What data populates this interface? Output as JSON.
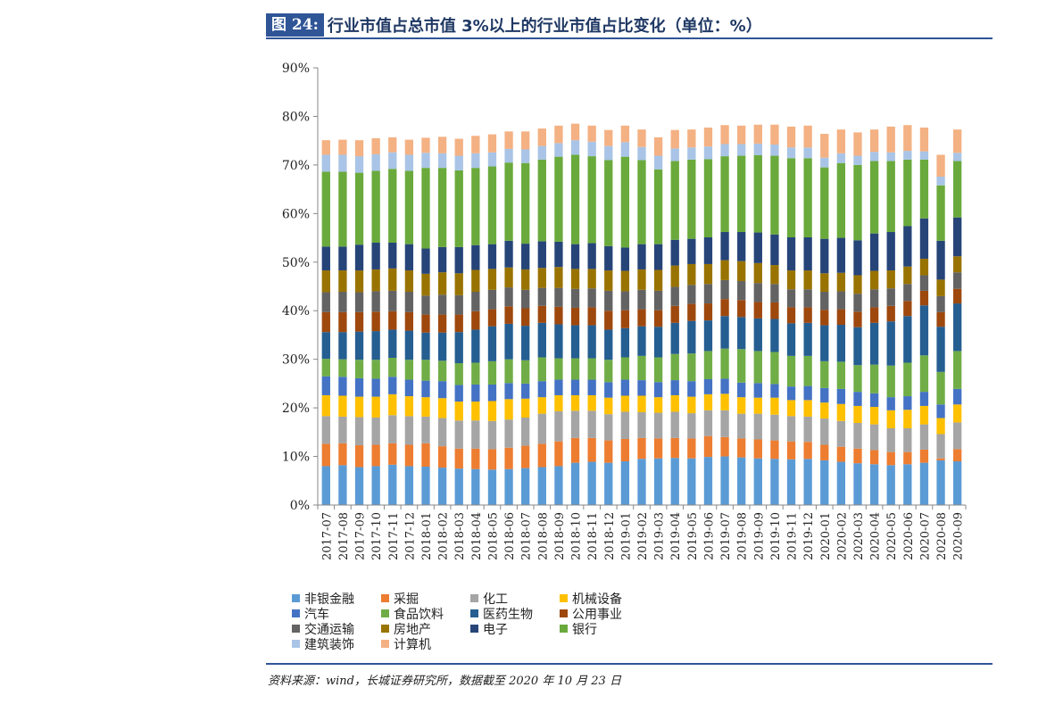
{
  "header": {
    "fig_label": "图 24:",
    "title": "行业市值占总市值 3%以上的行业市值占比变化（单位：%）"
  },
  "source": "资料来源：wind，长城证券研究所，数据截至 2020 年 10 月 23 日",
  "chart_data": {
    "type": "bar",
    "stacked": true,
    "title": "行业市值占总市值 3%以上的行业市值占比变化（单位：%）",
    "xlabel": "",
    "ylabel": "",
    "ylim": [
      0,
      90
    ],
    "y_ticks": [
      "0%",
      "10%",
      "20%",
      "30%",
      "40%",
      "50%",
      "60%",
      "70%",
      "80%",
      "90%"
    ],
    "legend_position": "bottom",
    "categories": [
      "2017-07",
      "2017-08",
      "2017-09",
      "2017-10",
      "2017-11",
      "2017-12",
      "2018-01",
      "2018-02",
      "2018-03",
      "2018-04",
      "2018-05",
      "2018-06",
      "2018-07",
      "2018-08",
      "2018-09",
      "2018-10",
      "2018-11",
      "2018-12",
      "2019-01",
      "2019-02",
      "2019-03",
      "2019-04",
      "2019-05",
      "2019-06",
      "2019-07",
      "2019-08",
      "2019-09",
      "2019-10",
      "2019-11",
      "2019-12",
      "2020-01",
      "2020-02",
      "2020-03",
      "2020-04",
      "2020-05",
      "2020-06",
      "2020-07",
      "2020-08",
      "2020-09"
    ],
    "series": [
      {
        "name": "非银金融",
        "color": "#5b9bd5",
        "values": [
          8.0,
          8.2,
          7.8,
          8.0,
          8.3,
          8.0,
          7.9,
          7.7,
          7.5,
          7.4,
          7.3,
          7.4,
          7.6,
          7.8,
          8.0,
          8.7,
          8.9,
          8.7,
          9.0,
          9.5,
          9.6,
          9.7,
          9.6,
          9.9,
          10.0,
          9.8,
          9.6,
          9.5,
          9.4,
          9.5,
          9.2,
          8.9,
          8.6,
          8.4,
          8.2,
          8.4,
          8.7,
          9.2,
          9.0
        ]
      },
      {
        "name": "采掘",
        "color": "#ed7d31",
        "values": [
          4.6,
          4.5,
          4.5,
          4.4,
          4.4,
          4.4,
          4.8,
          4.4,
          4.1,
          4.2,
          4.2,
          4.4,
          4.6,
          4.8,
          5.1,
          5.1,
          4.9,
          4.6,
          4.6,
          4.3,
          4.1,
          4.1,
          4.1,
          4.3,
          4.0,
          3.9,
          3.9,
          3.8,
          3.7,
          3.5,
          3.2,
          3.1,
          3.0,
          2.9,
          2.7,
          2.5,
          2.7,
          0.4,
          2.5
        ]
      },
      {
        "name": "化工",
        "color": "#a5a5a5",
        "values": [
          5.7,
          5.5,
          5.8,
          5.6,
          5.8,
          5.9,
          5.5,
          5.8,
          5.8,
          5.8,
          5.8,
          5.8,
          5.8,
          6.2,
          6.2,
          5.6,
          5.6,
          5.4,
          5.6,
          5.3,
          5.3,
          5.4,
          5.2,
          5.3,
          5.5,
          5.1,
          5.3,
          5.3,
          5.2,
          5.2,
          5.4,
          5.3,
          5.3,
          5.3,
          4.9,
          4.9,
          5.2,
          5.0,
          5.5
        ]
      },
      {
        "name": "机械设备",
        "color": "#ffc000",
        "values": [
          4.3,
          4.3,
          4.2,
          4.3,
          4.3,
          4.1,
          4.0,
          4.1,
          3.9,
          3.9,
          4.1,
          4.2,
          3.9,
          3.4,
          3.3,
          3.2,
          3.2,
          3.4,
          3.3,
          3.4,
          3.2,
          3.4,
          3.4,
          3.3,
          3.4,
          3.4,
          3.3,
          3.5,
          3.3,
          3.4,
          3.3,
          3.5,
          3.5,
          3.6,
          3.7,
          3.8,
          3.8,
          3.3,
          3.7
        ]
      },
      {
        "name": "汽车",
        "color": "#4472c4",
        "values": [
          3.9,
          3.9,
          3.8,
          3.7,
          3.6,
          3.4,
          3.4,
          3.5,
          3.4,
          3.5,
          3.4,
          3.3,
          3.1,
          3.3,
          3.2,
          3.2,
          3.2,
          3.2,
          3.3,
          3.2,
          3.1,
          3.1,
          3.2,
          3.1,
          3.1,
          3.0,
          3.0,
          2.8,
          2.8,
          2.9,
          3.0,
          3.1,
          2.9,
          2.8,
          2.7,
          2.8,
          2.9,
          2.8,
          3.2
        ]
      },
      {
        "name": "食品饮料",
        "color": "#70ad47",
        "values": [
          3.6,
          3.6,
          3.8,
          3.9,
          3.9,
          4.1,
          4.3,
          4.2,
          4.5,
          4.5,
          4.8,
          4.9,
          4.8,
          4.9,
          4.4,
          4.4,
          4.4,
          4.6,
          4.6,
          5.0,
          5.1,
          5.4,
          5.7,
          5.8,
          6.2,
          6.9,
          6.6,
          6.6,
          6.3,
          6.2,
          5.5,
          5.6,
          5.5,
          5.9,
          6.5,
          6.9,
          7.5,
          6.7,
          7.8
        ]
      },
      {
        "name": "医药生物",
        "color": "#255e91",
        "values": [
          5.5,
          5.6,
          5.8,
          5.9,
          5.8,
          6.0,
          5.6,
          5.8,
          6.4,
          6.8,
          7.2,
          7.3,
          7.1,
          7.1,
          7.0,
          6.8,
          6.8,
          6.2,
          6.0,
          6.1,
          6.3,
          6.4,
          6.7,
          6.3,
          6.7,
          6.6,
          6.7,
          6.8,
          6.7,
          6.8,
          7.4,
          7.6,
          7.8,
          8.6,
          9.1,
          9.6,
          10.3,
          9.3,
          9.8
        ]
      },
      {
        "name": "公用事业",
        "color": "#9e480e",
        "values": [
          4.1,
          4.1,
          4.0,
          4.0,
          3.8,
          3.8,
          3.7,
          3.7,
          3.6,
          3.8,
          3.5,
          3.6,
          3.6,
          3.5,
          3.6,
          3.6,
          3.7,
          3.9,
          3.7,
          3.5,
          3.4,
          3.5,
          3.5,
          3.5,
          3.5,
          3.5,
          3.4,
          3.4,
          3.3,
          3.2,
          3.2,
          3.2,
          3.2,
          3.2,
          3.2,
          3.1,
          3.0,
          3.0,
          3.0
        ]
      },
      {
        "name": "交通运输",
        "color": "#636363",
        "values": [
          4.1,
          4.2,
          4.1,
          4.2,
          4.2,
          4.2,
          3.9,
          4.1,
          4.0,
          4.0,
          4.0,
          3.9,
          3.8,
          3.7,
          3.9,
          3.9,
          3.9,
          4.1,
          3.9,
          4.0,
          4.0,
          3.9,
          3.9,
          4.0,
          3.9,
          3.9,
          3.9,
          3.8,
          3.7,
          3.7,
          3.7,
          3.7,
          3.7,
          3.7,
          3.6,
          3.5,
          3.2,
          3.3,
          3.4
        ]
      },
      {
        "name": "房地产",
        "color": "#997300",
        "values": [
          4.5,
          4.4,
          4.5,
          4.5,
          4.6,
          4.4,
          4.5,
          4.6,
          4.5,
          4.5,
          4.3,
          4.1,
          4.2,
          4.1,
          4.3,
          4.1,
          4.0,
          4.2,
          4.2,
          4.2,
          4.3,
          4.4,
          4.3,
          4.1,
          4.1,
          4.1,
          4.1,
          3.9,
          3.9,
          3.9,
          3.8,
          3.8,
          3.8,
          3.8,
          3.7,
          3.6,
          3.4,
          3.4,
          3.3
        ]
      },
      {
        "name": "电子",
        "color": "#264478",
        "values": [
          4.9,
          4.9,
          5.3,
          5.5,
          5.3,
          5.4,
          5.2,
          5.2,
          5.4,
          5.1,
          5.1,
          5.5,
          5.3,
          5.5,
          5.2,
          5.1,
          5.3,
          5.0,
          4.8,
          5.2,
          5.3,
          5.3,
          5.2,
          5.5,
          5.8,
          6.0,
          6.3,
          6.3,
          6.8,
          6.8,
          7.1,
          7.2,
          7.2,
          7.7,
          7.9,
          8.3,
          8.3,
          8.0,
          8.0
        ]
      },
      {
        "name": "银行",
        "color": "#6aaa3c",
        "values": [
          15.4,
          15.4,
          14.8,
          14.8,
          15.2,
          15.1,
          16.6,
          16.3,
          15.8,
          15.9,
          16.0,
          16.1,
          16.6,
          16.8,
          17.5,
          18.4,
          17.9,
          17.7,
          18.7,
          17.3,
          15.4,
          16.2,
          16.3,
          16.1,
          15.6,
          15.7,
          15.9,
          16.2,
          16.3,
          16.3,
          14.7,
          15.4,
          15.5,
          14.9,
          14.6,
          13.7,
          12.1,
          11.4,
          11.6
        ]
      },
      {
        "name": "建筑装饰",
        "color": "#a9c4e6",
        "values": [
          3.5,
          3.5,
          3.4,
          3.4,
          3.4,
          3.3,
          3.1,
          3.0,
          3.0,
          3.0,
          2.9,
          2.8,
          2.8,
          2.8,
          2.8,
          3.0,
          3.0,
          2.9,
          3.0,
          2.7,
          2.8,
          2.6,
          2.5,
          2.6,
          2.5,
          2.4,
          2.4,
          2.3,
          2.2,
          2.2,
          2.0,
          2.0,
          1.9,
          1.9,
          1.8,
          1.8,
          1.7,
          1.8,
          1.7
        ]
      },
      {
        "name": "计算机",
        "color": "#f4b183",
        "values": [
          3.0,
          3.1,
          3.3,
          3.3,
          3.1,
          3.1,
          3.1,
          3.4,
          3.5,
          3.6,
          3.7,
          3.6,
          3.7,
          3.6,
          3.6,
          3.4,
          3.3,
          3.3,
          3.4,
          3.6,
          3.8,
          3.8,
          3.7,
          3.9,
          3.9,
          3.8,
          3.9,
          4.1,
          4.3,
          4.5,
          4.9,
          4.9,
          4.8,
          4.6,
          5.3,
          5.3,
          4.9,
          4.5,
          4.8
        ]
      }
    ]
  }
}
